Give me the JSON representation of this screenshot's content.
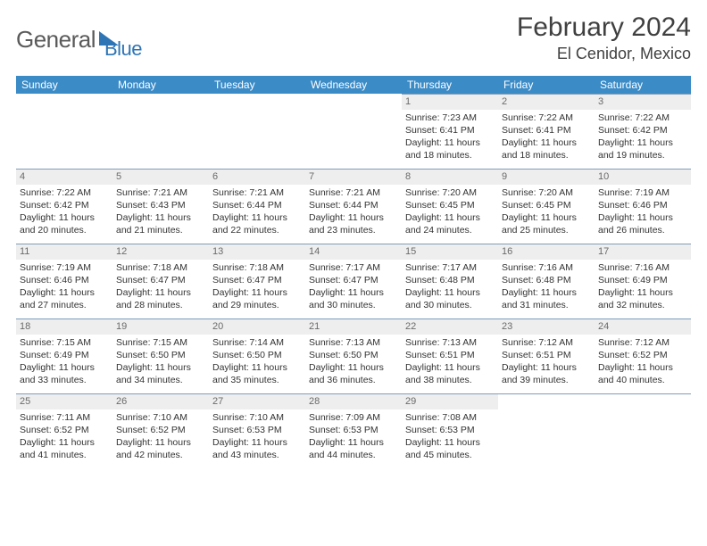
{
  "logo": {
    "text1": "General",
    "text2": "Blue"
  },
  "title": "February 2024",
  "location": "El Cenidor, Mexico",
  "colors": {
    "header_bg": "#3b8bc7",
    "header_text": "#ffffff",
    "border": "#7f9db9",
    "daynum_bg": "#eeeeee",
    "daynum_text": "#6a6a6a",
    "body_text": "#333333",
    "logo_gray": "#5a5a5a",
    "logo_blue": "#2e75b6"
  },
  "weekdays": [
    "Sunday",
    "Monday",
    "Tuesday",
    "Wednesday",
    "Thursday",
    "Friday",
    "Saturday"
  ],
  "first_weekday_index": 4,
  "days": [
    {
      "n": 1,
      "sunrise": "7:23 AM",
      "sunset": "6:41 PM",
      "daylight": "11 hours and 18 minutes."
    },
    {
      "n": 2,
      "sunrise": "7:22 AM",
      "sunset": "6:41 PM",
      "daylight": "11 hours and 18 minutes."
    },
    {
      "n": 3,
      "sunrise": "7:22 AM",
      "sunset": "6:42 PM",
      "daylight": "11 hours and 19 minutes."
    },
    {
      "n": 4,
      "sunrise": "7:22 AM",
      "sunset": "6:42 PM",
      "daylight": "11 hours and 20 minutes."
    },
    {
      "n": 5,
      "sunrise": "7:21 AM",
      "sunset": "6:43 PM",
      "daylight": "11 hours and 21 minutes."
    },
    {
      "n": 6,
      "sunrise": "7:21 AM",
      "sunset": "6:44 PM",
      "daylight": "11 hours and 22 minutes."
    },
    {
      "n": 7,
      "sunrise": "7:21 AM",
      "sunset": "6:44 PM",
      "daylight": "11 hours and 23 minutes."
    },
    {
      "n": 8,
      "sunrise": "7:20 AM",
      "sunset": "6:45 PM",
      "daylight": "11 hours and 24 minutes."
    },
    {
      "n": 9,
      "sunrise": "7:20 AM",
      "sunset": "6:45 PM",
      "daylight": "11 hours and 25 minutes."
    },
    {
      "n": 10,
      "sunrise": "7:19 AM",
      "sunset": "6:46 PM",
      "daylight": "11 hours and 26 minutes."
    },
    {
      "n": 11,
      "sunrise": "7:19 AM",
      "sunset": "6:46 PM",
      "daylight": "11 hours and 27 minutes."
    },
    {
      "n": 12,
      "sunrise": "7:18 AM",
      "sunset": "6:47 PM",
      "daylight": "11 hours and 28 minutes."
    },
    {
      "n": 13,
      "sunrise": "7:18 AM",
      "sunset": "6:47 PM",
      "daylight": "11 hours and 29 minutes."
    },
    {
      "n": 14,
      "sunrise": "7:17 AM",
      "sunset": "6:47 PM",
      "daylight": "11 hours and 30 minutes."
    },
    {
      "n": 15,
      "sunrise": "7:17 AM",
      "sunset": "6:48 PM",
      "daylight": "11 hours and 30 minutes."
    },
    {
      "n": 16,
      "sunrise": "7:16 AM",
      "sunset": "6:48 PM",
      "daylight": "11 hours and 31 minutes."
    },
    {
      "n": 17,
      "sunrise": "7:16 AM",
      "sunset": "6:49 PM",
      "daylight": "11 hours and 32 minutes."
    },
    {
      "n": 18,
      "sunrise": "7:15 AM",
      "sunset": "6:49 PM",
      "daylight": "11 hours and 33 minutes."
    },
    {
      "n": 19,
      "sunrise": "7:15 AM",
      "sunset": "6:50 PM",
      "daylight": "11 hours and 34 minutes."
    },
    {
      "n": 20,
      "sunrise": "7:14 AM",
      "sunset": "6:50 PM",
      "daylight": "11 hours and 35 minutes."
    },
    {
      "n": 21,
      "sunrise": "7:13 AM",
      "sunset": "6:50 PM",
      "daylight": "11 hours and 36 minutes."
    },
    {
      "n": 22,
      "sunrise": "7:13 AM",
      "sunset": "6:51 PM",
      "daylight": "11 hours and 38 minutes."
    },
    {
      "n": 23,
      "sunrise": "7:12 AM",
      "sunset": "6:51 PM",
      "daylight": "11 hours and 39 minutes."
    },
    {
      "n": 24,
      "sunrise": "7:12 AM",
      "sunset": "6:52 PM",
      "daylight": "11 hours and 40 minutes."
    },
    {
      "n": 25,
      "sunrise": "7:11 AM",
      "sunset": "6:52 PM",
      "daylight": "11 hours and 41 minutes."
    },
    {
      "n": 26,
      "sunrise": "7:10 AM",
      "sunset": "6:52 PM",
      "daylight": "11 hours and 42 minutes."
    },
    {
      "n": 27,
      "sunrise": "7:10 AM",
      "sunset": "6:53 PM",
      "daylight": "11 hours and 43 minutes."
    },
    {
      "n": 28,
      "sunrise": "7:09 AM",
      "sunset": "6:53 PM",
      "daylight": "11 hours and 44 minutes."
    },
    {
      "n": 29,
      "sunrise": "7:08 AM",
      "sunset": "6:53 PM",
      "daylight": "11 hours and 45 minutes."
    }
  ],
  "labels": {
    "sunrise": "Sunrise:",
    "sunset": "Sunset:",
    "daylight": "Daylight:"
  }
}
